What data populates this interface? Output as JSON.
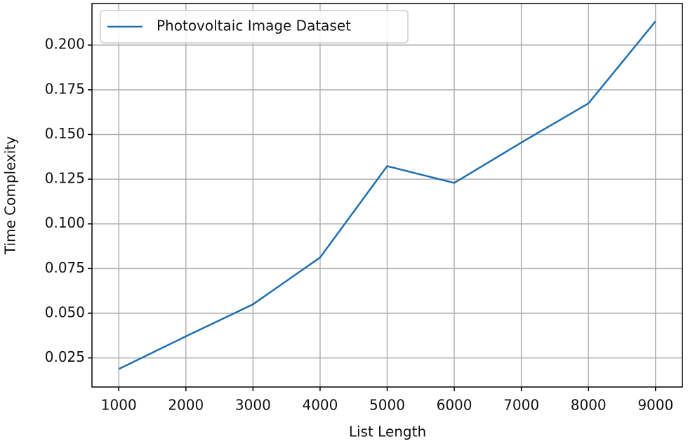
{
  "chart_data": {
    "type": "line",
    "x_label": "List Length",
    "y_label": "Time Complexity",
    "x": [
      1000,
      2000,
      3000,
      4000,
      5000,
      6000,
      7000,
      8000,
      9000
    ],
    "series": [
      {
        "name": "Photovoltaic Image Dataset",
        "color": "#1f6fb0",
        "values": [
          0.0188,
          0.0371,
          0.055,
          0.0812,
          0.1323,
          0.1229,
          0.1455,
          0.1674,
          0.2133
        ]
      }
    ],
    "xlim": [
      600,
      9400
    ],
    "xticks": [
      1000,
      2000,
      3000,
      4000,
      5000,
      6000,
      7000,
      8000,
      9000
    ],
    "ylim": [
      0.00875,
      0.22325
    ],
    "yticks": [
      0.025,
      {
        "value": 0.05,
        "label": "0.050"
      },
      0.075,
      {
        "value": 0.1,
        "label": "0.100"
      },
      0.125,
      {
        "value": 0.15,
        "label": "0.150"
      },
      0.175,
      {
        "value": 0.2,
        "label": "0.200"
      }
    ],
    "grid": true,
    "legend": "upper left"
  }
}
